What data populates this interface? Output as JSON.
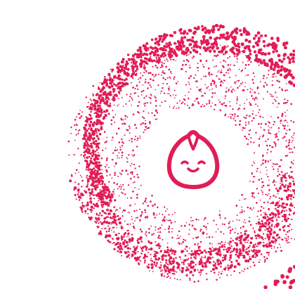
{
  "theme": {
    "accent": "#e11d55",
    "background": "#ffffff"
  },
  "mascot": {
    "icon": "dumpling-smile-icon"
  },
  "particles": {
    "pattern": "swirl-vortex",
    "color": "#e11d55"
  }
}
